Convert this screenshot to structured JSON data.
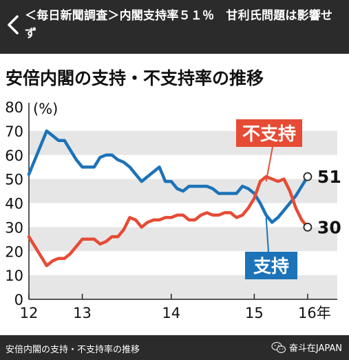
{
  "header": {
    "title": "＜毎日新聞調査＞内閣支持率５１％　甘利氏問題は影響せず",
    "back_icon": "chevron-left-icon"
  },
  "chart_data": {
    "type": "line",
    "title": "安倍内閣の支持・不支持率の推移",
    "ylabel": "(%)",
    "ylim": [
      0,
      80
    ],
    "yticks": [
      0,
      10,
      20,
      30,
      40,
      50,
      60,
      70,
      80
    ],
    "xlim": [
      0,
      52
    ],
    "xticks": [
      {
        "label": "12",
        "x": 0
      },
      {
        "label": "13",
        "x": 9
      },
      {
        "label": "14",
        "x": 24
      },
      {
        "label": "15",
        "x": 38
      },
      {
        "label": "16年",
        "x": 47
      }
    ],
    "grid": "horizontal-bands",
    "series": [
      {
        "name": "支持",
        "color": "#1c73b8",
        "x": [
          0,
          2,
          3,
          4,
          5,
          6,
          7,
          8,
          9,
          10,
          11,
          12,
          13,
          14,
          15,
          16,
          17,
          18,
          19,
          20,
          21,
          22,
          23,
          24,
          25,
          26,
          27,
          28,
          29,
          30,
          31,
          32,
          33,
          34,
          35,
          36,
          37,
          38,
          39,
          40,
          41,
          42,
          43,
          44,
          45,
          46,
          47
        ],
        "values": [
          52,
          64,
          70,
          68,
          66,
          66,
          62,
          58,
          55,
          55,
          55,
          59,
          60,
          60,
          58,
          57,
          55,
          52,
          49,
          51,
          53,
          55,
          49,
          49,
          46,
          45,
          47,
          47,
          47,
          47,
          46,
          44,
          44,
          44,
          44,
          47,
          46,
          44,
          40,
          35,
          32,
          34,
          37,
          40,
          43,
          47,
          51
        ]
      },
      {
        "name": "不支持",
        "color": "#e64b35",
        "x": [
          0,
          2,
          3,
          4,
          5,
          6,
          7,
          8,
          9,
          10,
          11,
          12,
          13,
          14,
          15,
          16,
          17,
          18,
          19,
          20,
          21,
          22,
          23,
          24,
          25,
          26,
          27,
          28,
          29,
          30,
          31,
          32,
          33,
          34,
          35,
          36,
          37,
          38,
          39,
          40,
          41,
          42,
          43,
          44,
          45,
          46,
          47
        ],
        "values": [
          26,
          18,
          14,
          16,
          17,
          17,
          19,
          22,
          25,
          25,
          25,
          23,
          24,
          26,
          26,
          29,
          34,
          33,
          30,
          32,
          33,
          33,
          34,
          34,
          35,
          35,
          33,
          33,
          35,
          36,
          35,
          35,
          36,
          36,
          34,
          35,
          38,
          42,
          49,
          51,
          50,
          49,
          50,
          45,
          38,
          33,
          30
        ]
      }
    ],
    "end_labels": {
      "支持": "51",
      "不支持": "30"
    },
    "series_label_colors": {
      "支持": "#ffffff",
      "不支持": "#ffffff"
    }
  },
  "footer": {
    "caption": "安倍内閣の支持・不支持率の推移",
    "credit": "奋斗在JAPAN",
    "credit_icon": "wechat-icon"
  }
}
